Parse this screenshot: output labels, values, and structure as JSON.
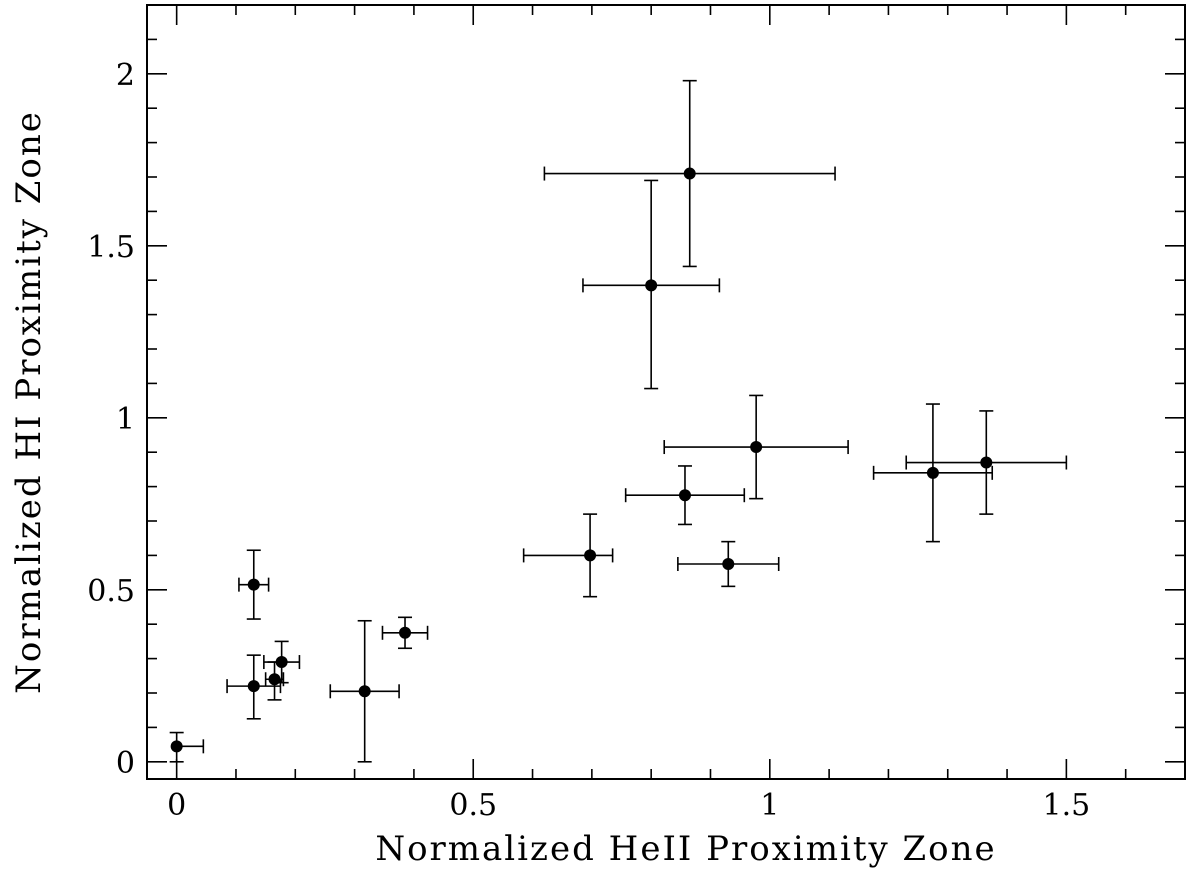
{
  "chart_data": {
    "type": "scatter",
    "title": "",
    "xlabel": "Normalized HeII Proximity Zone",
    "ylabel": "Normalized HI Proximity Zone",
    "xlim": [
      -0.05,
      1.7
    ],
    "ylim": [
      -0.05,
      2.2
    ],
    "grid": false,
    "legend": "none",
    "x_ticks": [
      {
        "value": 0,
        "label": "0"
      },
      {
        "value": 0.5,
        "label": "0.5"
      },
      {
        "value": 1,
        "label": "1"
      },
      {
        "value": 1.5,
        "label": "1.5"
      }
    ],
    "y_ticks": [
      {
        "value": 0,
        "label": "0"
      },
      {
        "value": 0.5,
        "label": "0.5"
      },
      {
        "value": 1,
        "label": "1"
      },
      {
        "value": 1.5,
        "label": "1.5"
      },
      {
        "value": 2,
        "label": "2"
      }
    ],
    "x_minor_step": 0.1,
    "y_minor_step": 0.1,
    "points": [
      {
        "x": 0.0,
        "y": 0.045,
        "xerr": [
          0.0,
          0.045
        ],
        "yerr": [
          0.045,
          0.04
        ]
      },
      {
        "x": 0.13,
        "y": 0.515,
        "xerr": [
          0.025,
          0.025
        ],
        "yerr": [
          0.1,
          0.1
        ]
      },
      {
        "x": 0.13,
        "y": 0.22,
        "xerr": [
          0.045,
          0.045
        ],
        "yerr": [
          0.095,
          0.09
        ]
      },
      {
        "x": 0.165,
        "y": 0.24,
        "xerr": [
          0.015,
          0.015
        ],
        "yerr": [
          0.06,
          0.05
        ]
      },
      {
        "x": 0.177,
        "y": 0.29,
        "xerr": [
          0.03,
          0.03
        ],
        "yerr": [
          0.06,
          0.06
        ]
      },
      {
        "x": 0.317,
        "y": 0.205,
        "xerr": [
          0.058,
          0.058
        ],
        "yerr": [
          0.205,
          0.205
        ]
      },
      {
        "x": 0.385,
        "y": 0.375,
        "xerr": [
          0.038,
          0.038
        ],
        "yerr": [
          0.045,
          0.045
        ]
      },
      {
        "x": 0.697,
        "y": 0.6,
        "xerr": [
          0.112,
          0.038
        ],
        "yerr": [
          0.12,
          0.12
        ]
      },
      {
        "x": 0.8,
        "y": 1.385,
        "xerr": [
          0.115,
          0.115
        ],
        "yerr": [
          0.3,
          0.305
        ]
      },
      {
        "x": 0.865,
        "y": 1.71,
        "xerr": [
          0.245,
          0.245
        ],
        "yerr": [
          0.27,
          0.27
        ]
      },
      {
        "x": 0.857,
        "y": 0.775,
        "xerr": [
          0.1,
          0.1
        ],
        "yerr": [
          0.085,
          0.085
        ]
      },
      {
        "x": 0.93,
        "y": 0.575,
        "xerr": [
          0.085,
          0.085
        ],
        "yerr": [
          0.065,
          0.065
        ]
      },
      {
        "x": 0.977,
        "y": 0.915,
        "xerr": [
          0.155,
          0.155
        ],
        "yerr": [
          0.15,
          0.15
        ]
      },
      {
        "x": 1.275,
        "y": 0.84,
        "xerr": [
          0.1,
          0.1
        ],
        "yerr": [
          0.2,
          0.2
        ]
      },
      {
        "x": 1.365,
        "y": 0.87,
        "xerr": [
          0.135,
          0.135
        ],
        "yerr": [
          0.15,
          0.15
        ]
      }
    ]
  }
}
